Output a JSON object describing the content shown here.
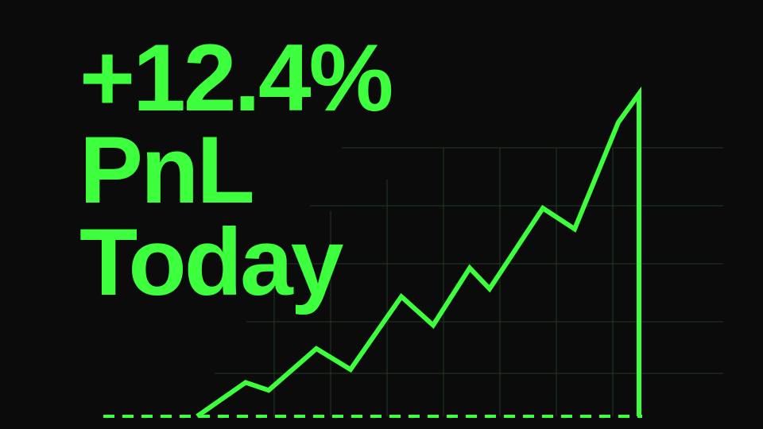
{
  "headline": {
    "line1": "+12.4%",
    "line2": "PnL",
    "line3": "Today"
  },
  "colors": {
    "background": "#0b0b0b",
    "accent": "#3dff3d",
    "grid": "#1f3a1f"
  },
  "chart_data": {
    "type": "line",
    "title": "",
    "xlabel": "",
    "ylabel": "",
    "grid": true,
    "legend": "none",
    "x": [
      0,
      1,
      2,
      3,
      4,
      5,
      6,
      7,
      8,
      9,
      10,
      11,
      12,
      13
    ],
    "xlim": [
      0,
      13
    ],
    "ylim": [
      0,
      12.4
    ],
    "series": [
      {
        "values": [
          0,
          1.3,
          1.0,
          2.6,
          1.8,
          4.6,
          3.5,
          5.7,
          4.9,
          8.0,
          7.2,
          11.3,
          12.4,
          0
        ]
      }
    ],
    "baseline": 0
  }
}
